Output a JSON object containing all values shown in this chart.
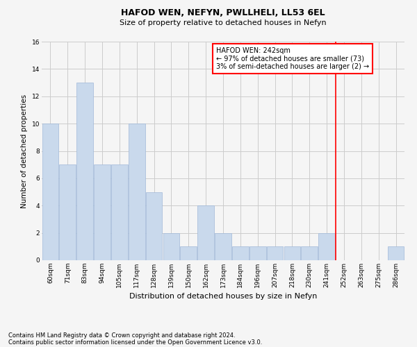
{
  "title": "HAFOD WEN, NEFYN, PWLLHELI, LL53 6EL",
  "subtitle": "Size of property relative to detached houses in Nefyn",
  "xlabel": "Distribution of detached houses by size in Nefyn",
  "ylabel": "Number of detached properties",
  "footer1": "Contains HM Land Registry data © Crown copyright and database right 2024.",
  "footer2": "Contains public sector information licensed under the Open Government Licence v3.0.",
  "categories": [
    "60sqm",
    "71sqm",
    "83sqm",
    "94sqm",
    "105sqm",
    "117sqm",
    "128sqm",
    "139sqm",
    "150sqm",
    "162sqm",
    "173sqm",
    "184sqm",
    "196sqm",
    "207sqm",
    "218sqm",
    "230sqm",
    "241sqm",
    "252sqm",
    "263sqm",
    "275sqm",
    "286sqm"
  ],
  "values": [
    10,
    7,
    13,
    7,
    7,
    10,
    5,
    2,
    1,
    4,
    2,
    1,
    1,
    1,
    1,
    1,
    2,
    0,
    0,
    0,
    1
  ],
  "bar_color": "#c9d9ec",
  "bar_edgecolor": "#a0b8d8",
  "bar_linewidth": 0.5,
  "grid_color": "#cccccc",
  "background_color": "#f5f5f5",
  "vline_x": 16.5,
  "vline_color": "red",
  "annotation_text": "HAFOD WEN: 242sqm\n← 97% of detached houses are smaller (73)\n3% of semi-detached houses are larger (2) →",
  "annotation_box_color": "white",
  "annotation_box_edgecolor": "red",
  "ylim": [
    0,
    16
  ],
  "yticks": [
    0,
    2,
    4,
    6,
    8,
    10,
    12,
    14,
    16
  ],
  "title_fontsize": 9,
  "subtitle_fontsize": 8,
  "ylabel_fontsize": 7.5,
  "xlabel_fontsize": 8,
  "tick_fontsize": 6.5,
  "annot_fontsize": 7,
  "footer_fontsize": 6
}
